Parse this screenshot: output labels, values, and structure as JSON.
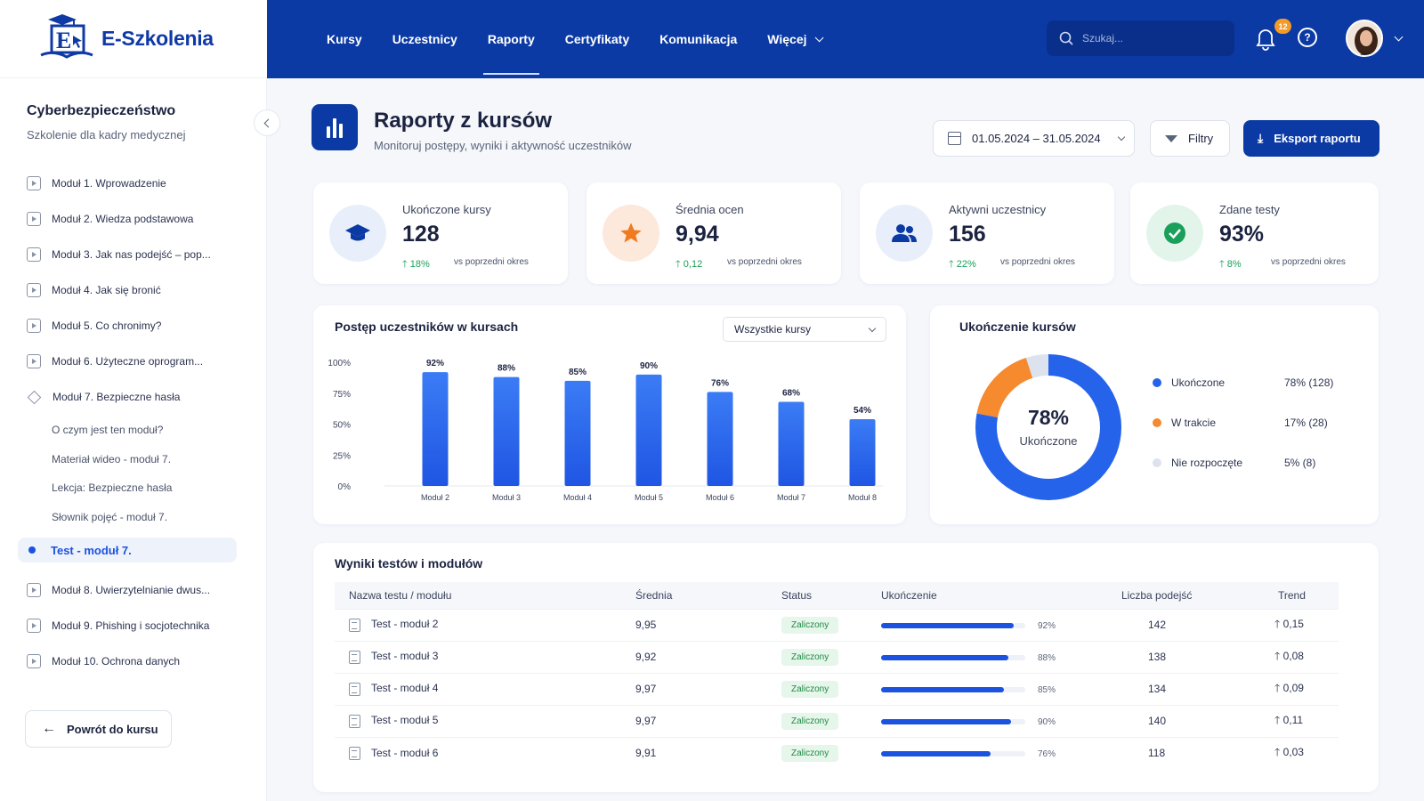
{
  "brand": {
    "name": "E-Szkolenia"
  },
  "nav": [
    "Kursy",
    "Uczestnicy",
    "Raporty",
    "Certyfikaty",
    "Komunikacja",
    "Więcej"
  ],
  "nav_active": "Raporty",
  "search": {
    "placeholder": "Szukaj..."
  },
  "notifications": {
    "count": "12"
  },
  "help_label": "?",
  "sidebar": {
    "course_title": "Cyberbezpieczeństwo",
    "course_subtitle": "Szkolenie dla kadry medycznej",
    "modules_top": [
      "Moduł 1. Wprowadzenie",
      "Moduł 2. Wiedza podstawowa",
      "Moduł 3. Jak nas podejść – pop...",
      "Moduł 4. Jak się bronić",
      "Moduł 5. Co chronimy?",
      "Moduł 6. Użyteczne oprogram...",
      "Moduł 7. Bezpieczne hasła"
    ],
    "submodules": [
      "O czym jest ten moduł?",
      "Materiał wideo - moduł 7.",
      "Lekcja: Bezpieczne hasła",
      "Słownik pojęć - moduł 7."
    ],
    "active_item": "Test - moduł 7.",
    "modules_bottom": [
      "Moduł 8. Uwierzytelnianie dwus...",
      "Moduł 9. Phishing i socjotechnika",
      "Moduł 10. Ochrona danych"
    ],
    "back_label": "Powrót do kursu"
  },
  "page": {
    "title": "Raporty z kursów",
    "subtitle": "Monitoruj postępy, wyniki i aktywność uczestników",
    "date_range": "01.05.2024 – 31.05.2024",
    "filters_label": "Filtry",
    "export_label": "Eksport raportu"
  },
  "kpis": [
    {
      "label": "Ukończone kursy",
      "value": "128",
      "change": "18%",
      "vs": "vs poprzedni okres",
      "icon": "graduation-cap-icon",
      "bg": "#e9eefb",
      "color": "#0b3aa4"
    },
    {
      "label": "Średnia ocen",
      "value": "9,94",
      "change": "0,12",
      "vs": "vs poprzedni okres",
      "icon": "star-icon",
      "bg": "#fde8dc",
      "color": "#f07a1f"
    },
    {
      "label": "Aktywni uczestnicy",
      "value": "156",
      "change": "22%",
      "vs": "vs poprzedni okres",
      "icon": "users-icon",
      "bg": "#e9eefb",
      "color": "#0b3aa4"
    },
    {
      "label": "Zdane testy",
      "value": "93%",
      "change": "8%",
      "vs": "vs poprzedni okres",
      "icon": "check-badge-icon",
      "bg": "#e3f5ea",
      "color": "#1aa05a"
    }
  ],
  "progress_card": {
    "title": "Postęp uczestników w kursach",
    "select_value": "Wszystkie kursy"
  },
  "completion_card": {
    "title": "Ukończenie kursów",
    "center_value": "78%",
    "center_label": "Ukończone",
    "legend": [
      {
        "label": "Ukończone",
        "value": "78% (128)",
        "color": "#2563eb"
      },
      {
        "label": "W trakcie",
        "value": "17% (28)",
        "color": "#f58a2f"
      },
      {
        "label": "Nie rozpoczęte",
        "value": "5% (8)",
        "color": "#dde3ee"
      }
    ]
  },
  "chart_data": [
    {
      "type": "bar",
      "categories": [
        "Moduł 2",
        "Moduł 3",
        "Moduł 4",
        "Moduł 5",
        "Moduł 6",
        "Moduł 7",
        "Moduł 8"
      ],
      "values": [
        92,
        88,
        85,
        90,
        76,
        68,
        54
      ],
      "data_labels": [
        "92%",
        "88%",
        "85%",
        "90%",
        "76%",
        "68%",
        "54%"
      ],
      "yticks": [
        "100%",
        "75%",
        "50%",
        "25%",
        "0%"
      ],
      "ylim": [
        0,
        100
      ],
      "color": "#2f6df0"
    },
    {
      "type": "pie",
      "categories": [
        "Ukończone",
        "W trakcie",
        "Nie rozpoczęte"
      ],
      "values": [
        78,
        17,
        5
      ],
      "colors": [
        "#2563eb",
        "#f58a2f",
        "#dde3ee"
      ]
    }
  ],
  "results": {
    "title": "Wyniki testów i modułów",
    "columns": [
      "Nazwa testu / modułu",
      "Średnia",
      "Status",
      "Ukończenie",
      "Liczba podejść",
      "Trend"
    ],
    "rows": [
      {
        "name": "Test - moduł 2",
        "avg": "9,95",
        "status": "Zaliczony",
        "completion": 92,
        "completion_label": "92%",
        "attempts": "142",
        "trend": "0,15"
      },
      {
        "name": "Test - moduł 3",
        "avg": "9,92",
        "status": "Zaliczony",
        "completion": 88,
        "completion_label": "88%",
        "attempts": "138",
        "trend": "0,08"
      },
      {
        "name": "Test - moduł 4",
        "avg": "9,97",
        "status": "Zaliczony",
        "completion": 85,
        "completion_label": "85%",
        "attempts": "134",
        "trend": "0,09"
      },
      {
        "name": "Test - moduł 5",
        "avg": "9,97",
        "status": "Zaliczony",
        "completion": 90,
        "completion_label": "90%",
        "attempts": "140",
        "trend": "0,11"
      },
      {
        "name": "Test - moduł 6",
        "avg": "9,91",
        "status": "Zaliczony",
        "completion": 76,
        "completion_label": "76%",
        "attempts": "118",
        "trend": "0,03"
      }
    ]
  }
}
